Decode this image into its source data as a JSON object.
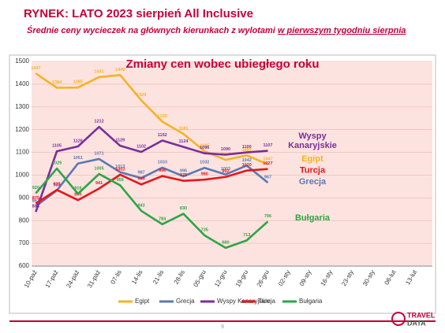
{
  "header": {
    "title": "RYNEK: LATO 2023 sierpień All Inclusive",
    "subtitle": "Średnie ceny wycieczek na głównych kierunkach z wylotami",
    "subtitle_underlined": "w pierwszym tygodniu sierpnia"
  },
  "page_number": "9",
  "logo": {
    "line1": "TRAVEL",
    "line2": "DATA"
  },
  "chart_data": {
    "type": "line",
    "title": "Zmiany cen wobec ubiegłego roku",
    "categories": [
      "10-paź",
      "17-paź",
      "24-paź",
      "31-paź",
      "07-lis",
      "14-lis",
      "21-lis",
      "28-lis",
      "05-gru",
      "12-gru",
      "19-gru",
      "26-gru",
      "02-sty",
      "09-sty",
      "16-sty",
      "23-sty",
      "30-sty",
      "06-lut",
      "13-lut"
    ],
    "series": [
      {
        "name": "Egipt",
        "color": "#f5b324",
        "values": [
          1447,
          1384,
          1385,
          1431,
          1440,
          1329,
          1235,
          1181,
          1105,
          1067,
          1087,
          1047,
          null,
          null,
          null,
          null,
          null,
          null,
          null
        ]
      },
      {
        "name": "Grecja",
        "color": "#5b78b5",
        "values": [
          863,
          933,
          1051,
          1071,
          1013,
          987,
          1033,
          995,
          1032,
          1003,
          1042,
          967,
          null,
          null,
          null,
          null,
          null,
          null,
          null
        ]
      },
      {
        "name": "Wyspy Kanaryjskie",
        "color": "#7a2e9a",
        "values": [
          838,
          1105,
          1126,
          1212,
          1129,
          1102,
          1152,
          1124,
          1096,
          1090,
          1100,
          1107,
          null,
          null,
          null,
          null,
          null,
          null,
          null
        ]
      },
      {
        "name": "Turcja",
        "color": "#e8141c",
        "values": [
          875,
          935,
          890,
          941,
          1002,
          959,
          996,
          975,
          980,
          992,
          1020,
          1027,
          null,
          null,
          null,
          null,
          null,
          null,
          null
        ]
      },
      {
        "name": "Bułgaria",
        "color": "#2ca646",
        "values": [
          920,
          1029,
          918,
          1005,
          955,
          843,
          784,
          830,
          735,
          680,
          713,
          796,
          null,
          null,
          null,
          null,
          null,
          null,
          null
        ]
      }
    ],
    "ylim": [
      600,
      1500
    ],
    "yticks": [
      600,
      700,
      800,
      900,
      1000,
      1100,
      1200,
      1300,
      1400,
      1500
    ],
    "grid": true,
    "legend": "bottom",
    "annotations": [
      {
        "text": "Wyspy",
        "color": "#7a2e9a",
        "value": 1170
      },
      {
        "text": "Kanaryjskie",
        "color": "#7a2e9a",
        "value": 1130
      },
      {
        "text": "Egipt",
        "color": "#f5b324",
        "value": 1070
      },
      {
        "text": "Turcja",
        "color": "#e8141c",
        "value": 1020
      },
      {
        "text": "Grecja",
        "color": "#5b78b5",
        "value": 970
      },
      {
        "text": "Bułgaria",
        "color": "#2ca646",
        "value": 810
      }
    ]
  }
}
